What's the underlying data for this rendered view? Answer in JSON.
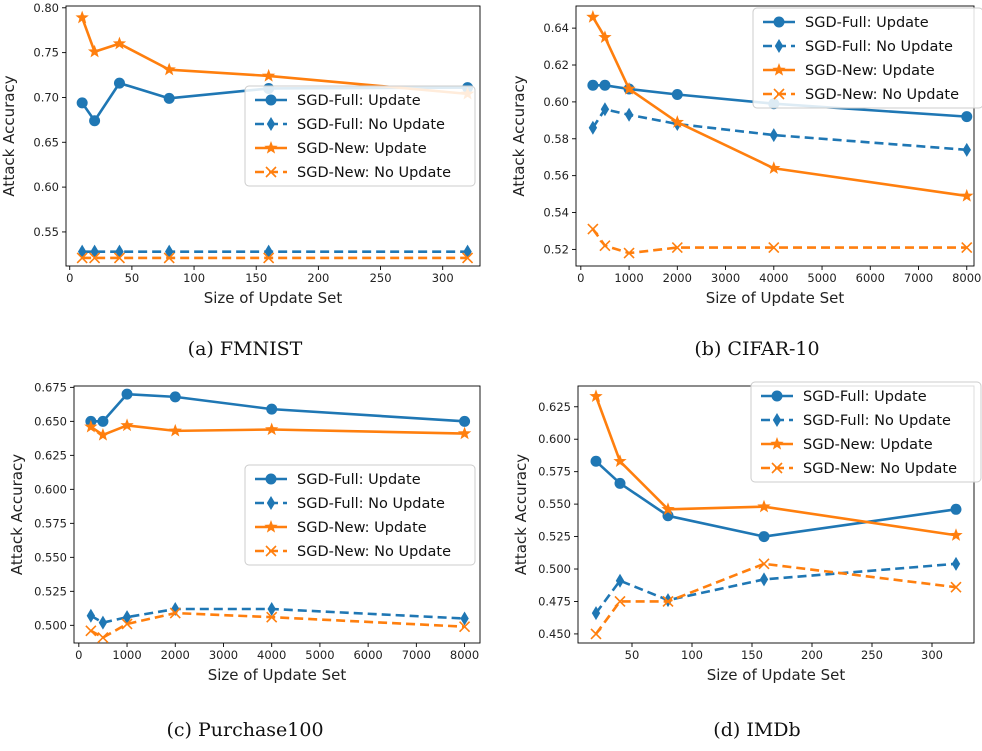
{
  "colors": {
    "blue": "#1f77b4",
    "orange": "#ff7f0e"
  },
  "chart_data": [
    {
      "type": "line",
      "caption": "(a) FMNIST",
      "xlabel": "Size of Update Set",
      "ylabel": "Attack Accuracy",
      "xlim": [
        -3,
        330
      ],
      "ylim": [
        0.512,
        0.802
      ],
      "xticks": [
        0,
        50,
        100,
        150,
        200,
        250,
        300
      ],
      "yticks": [
        0.55,
        0.6,
        0.65,
        0.7,
        0.75,
        0.8
      ],
      "ydecimals": 2,
      "legend_position": "center-right",
      "x": [
        10,
        20,
        40,
        80,
        160,
        320
      ],
      "series": [
        {
          "name": "SGD-Full: Update",
          "color": "blue",
          "dash": false,
          "marker": "circle",
          "values": [
            0.694,
            0.674,
            0.716,
            0.699,
            0.71,
            0.711
          ]
        },
        {
          "name": "SGD-Full: No Update",
          "color": "blue",
          "dash": true,
          "marker": "diamond",
          "values": [
            0.528,
            0.528,
            0.528,
            0.528,
            0.528,
            0.528
          ]
        },
        {
          "name": "SGD-New: Update",
          "color": "orange",
          "dash": false,
          "marker": "star",
          "values": [
            0.789,
            0.751,
            0.76,
            0.731,
            0.724,
            0.704
          ]
        },
        {
          "name": "SGD-New: No Update",
          "color": "orange",
          "dash": true,
          "marker": "x",
          "values": [
            0.521,
            0.521,
            0.521,
            0.521,
            0.521,
            0.521
          ]
        }
      ]
    },
    {
      "type": "line",
      "caption": "(b) CIFAR-10",
      "xlabel": "Size of Update Set",
      "ylabel": "Attack Accuracy",
      "xlim": [
        -100,
        8150
      ],
      "ylim": [
        0.511,
        0.652
      ],
      "xticks": [
        0,
        1000,
        2000,
        3000,
        4000,
        5000,
        6000,
        7000,
        8000
      ],
      "yticks": [
        0.52,
        0.54,
        0.56,
        0.58,
        0.6,
        0.62,
        0.64
      ],
      "ydecimals": 2,
      "legend_position": "top-right",
      "x": [
        250,
        500,
        1000,
        2000,
        4000,
        8000
      ],
      "series": [
        {
          "name": "SGD-Full: Update",
          "color": "blue",
          "dash": false,
          "marker": "circle",
          "values": [
            0.609,
            0.609,
            0.607,
            0.604,
            0.599,
            0.592
          ]
        },
        {
          "name": "SGD-Full: No Update",
          "color": "blue",
          "dash": true,
          "marker": "diamond",
          "values": [
            0.586,
            0.596,
            0.593,
            0.588,
            0.582,
            0.574
          ]
        },
        {
          "name": "SGD-New: Update",
          "color": "orange",
          "dash": false,
          "marker": "star",
          "values": [
            0.646,
            0.635,
            0.607,
            0.589,
            0.564,
            0.549
          ]
        },
        {
          "name": "SGD-New: No Update",
          "color": "orange",
          "dash": true,
          "marker": "x",
          "values": [
            0.531,
            0.522,
            0.518,
            0.521,
            0.521,
            0.521
          ]
        }
      ]
    },
    {
      "type": "line",
      "caption": "(c) Purchase100",
      "xlabel": "Size of Update Set",
      "ylabel": "Attack Accuracy",
      "xlim": [
        -100,
        8320
      ],
      "ylim": [
        0.487,
        0.676
      ],
      "xticks": [
        0,
        1000,
        2000,
        3000,
        4000,
        5000,
        6000,
        7000,
        8000
      ],
      "yticks": [
        0.5,
        0.525,
        0.55,
        0.575,
        0.6,
        0.625,
        0.65,
        0.675
      ],
      "ydecimals": 3,
      "legend_position": "center-right",
      "x": [
        250,
        500,
        1000,
        2000,
        4000,
        8000
      ],
      "series": [
        {
          "name": "SGD-Full: Update",
          "color": "blue",
          "dash": false,
          "marker": "circle",
          "values": [
            0.65,
            0.65,
            0.67,
            0.668,
            0.659,
            0.65
          ]
        },
        {
          "name": "SGD-Full: No Update",
          "color": "blue",
          "dash": true,
          "marker": "diamond",
          "values": [
            0.507,
            0.502,
            0.506,
            0.512,
            0.512,
            0.505
          ]
        },
        {
          "name": "SGD-New: Update",
          "color": "orange",
          "dash": false,
          "marker": "star",
          "values": [
            0.646,
            0.64,
            0.647,
            0.643,
            0.644,
            0.641
          ]
        },
        {
          "name": "SGD-New: No Update",
          "color": "orange",
          "dash": true,
          "marker": "x",
          "values": [
            0.496,
            0.491,
            0.501,
            0.509,
            0.506,
            0.499
          ]
        }
      ]
    },
    {
      "type": "line",
      "caption": "(d) IMDb",
      "xlabel": "Size of Update Set",
      "ylabel": "Attack Accuracy",
      "xlim": [
        5,
        335
      ],
      "ylim": [
        0.443,
        0.641
      ],
      "xticks": [
        50,
        100,
        150,
        200,
        250,
        300
      ],
      "yticks": [
        0.45,
        0.475,
        0.5,
        0.525,
        0.55,
        0.575,
        0.6,
        0.625
      ],
      "ydecimals": 3,
      "legend_position": "top-right",
      "x": [
        20,
        40,
        80,
        160,
        320
      ],
      "series": [
        {
          "name": "SGD-Full: Update",
          "color": "blue",
          "dash": false,
          "marker": "circle",
          "values": [
            0.583,
            0.566,
            0.541,
            0.525,
            0.546
          ]
        },
        {
          "name": "SGD-Full: No Update",
          "color": "blue",
          "dash": true,
          "marker": "diamond",
          "values": [
            0.466,
            0.491,
            0.476,
            0.492,
            0.504
          ]
        },
        {
          "name": "SGD-New: Update",
          "color": "orange",
          "dash": false,
          "marker": "star",
          "values": [
            0.633,
            0.583,
            0.546,
            0.548,
            0.526
          ]
        },
        {
          "name": "SGD-New: No Update",
          "color": "orange",
          "dash": true,
          "marker": "x",
          "values": [
            0.45,
            0.475,
            0.475,
            0.504,
            0.486
          ]
        }
      ]
    }
  ]
}
